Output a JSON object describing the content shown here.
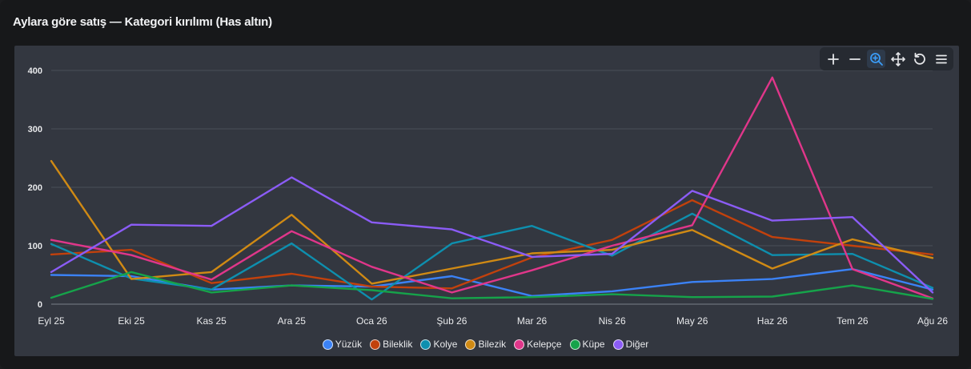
{
  "panel": {
    "title": "Aylara göre satış — Kategori kırılımı (Has altın)"
  },
  "toolbar": {
    "buttons": [
      {
        "name": "zoom-in-icon"
      },
      {
        "name": "zoom-out-icon"
      },
      {
        "name": "selection-zoom-icon",
        "active": true
      },
      {
        "name": "pan-icon"
      },
      {
        "name": "reset-icon"
      },
      {
        "name": "menu-icon"
      }
    ]
  },
  "chart_data": {
    "type": "line",
    "title": "Aylara göre satış — Kategori kırılımı (Has altın)",
    "xlabel": "",
    "ylabel": "",
    "categories": [
      "Eyl 25",
      "Eki 25",
      "Kas 25",
      "Ara 25",
      "Oca 26",
      "Şub 26",
      "Mar 26",
      "Nis 26",
      "May 26",
      "Haz 26",
      "Tem 26",
      "Ağu 26"
    ],
    "ylim": [
      0,
      400
    ],
    "yticks": [
      0,
      100,
      200,
      300,
      400
    ],
    "grid": true,
    "legend_position": "bottom",
    "series": [
      {
        "name": "Yüzük",
        "color": "#3b82f6",
        "values": [
          50,
          48,
          25,
          32,
          30,
          48,
          14,
          22,
          38,
          43,
          60,
          25
        ]
      },
      {
        "name": "Bileklik",
        "color": "#c2410c",
        "values": [
          85,
          93,
          36,
          52,
          30,
          27,
          80,
          110,
          178,
          115,
          100,
          85
        ]
      },
      {
        "name": "Kolye",
        "color": "#0e8fae",
        "values": [
          103,
          44,
          25,
          104,
          8,
          104,
          134,
          83,
          155,
          84,
          86,
          28
        ]
      },
      {
        "name": "Bilezik",
        "color": "#d08a14",
        "values": [
          245,
          43,
          55,
          153,
          35,
          61,
          87,
          93,
          127,
          61,
          111,
          79
        ]
      },
      {
        "name": "Kelepçe",
        "color": "#e0368a",
        "values": [
          110,
          84,
          42,
          125,
          64,
          20,
          58,
          100,
          135,
          388,
          60,
          10
        ]
      },
      {
        "name": "Küpe",
        "color": "#16a34a",
        "values": [
          11,
          55,
          20,
          32,
          24,
          10,
          12,
          17,
          12,
          13,
          32,
          9
        ]
      },
      {
        "name": "Diğer",
        "color": "#8b5cf6",
        "values": [
          55,
          136,
          134,
          217,
          140,
          128,
          81,
          86,
          194,
          143,
          149,
          20
        ]
      }
    ]
  }
}
